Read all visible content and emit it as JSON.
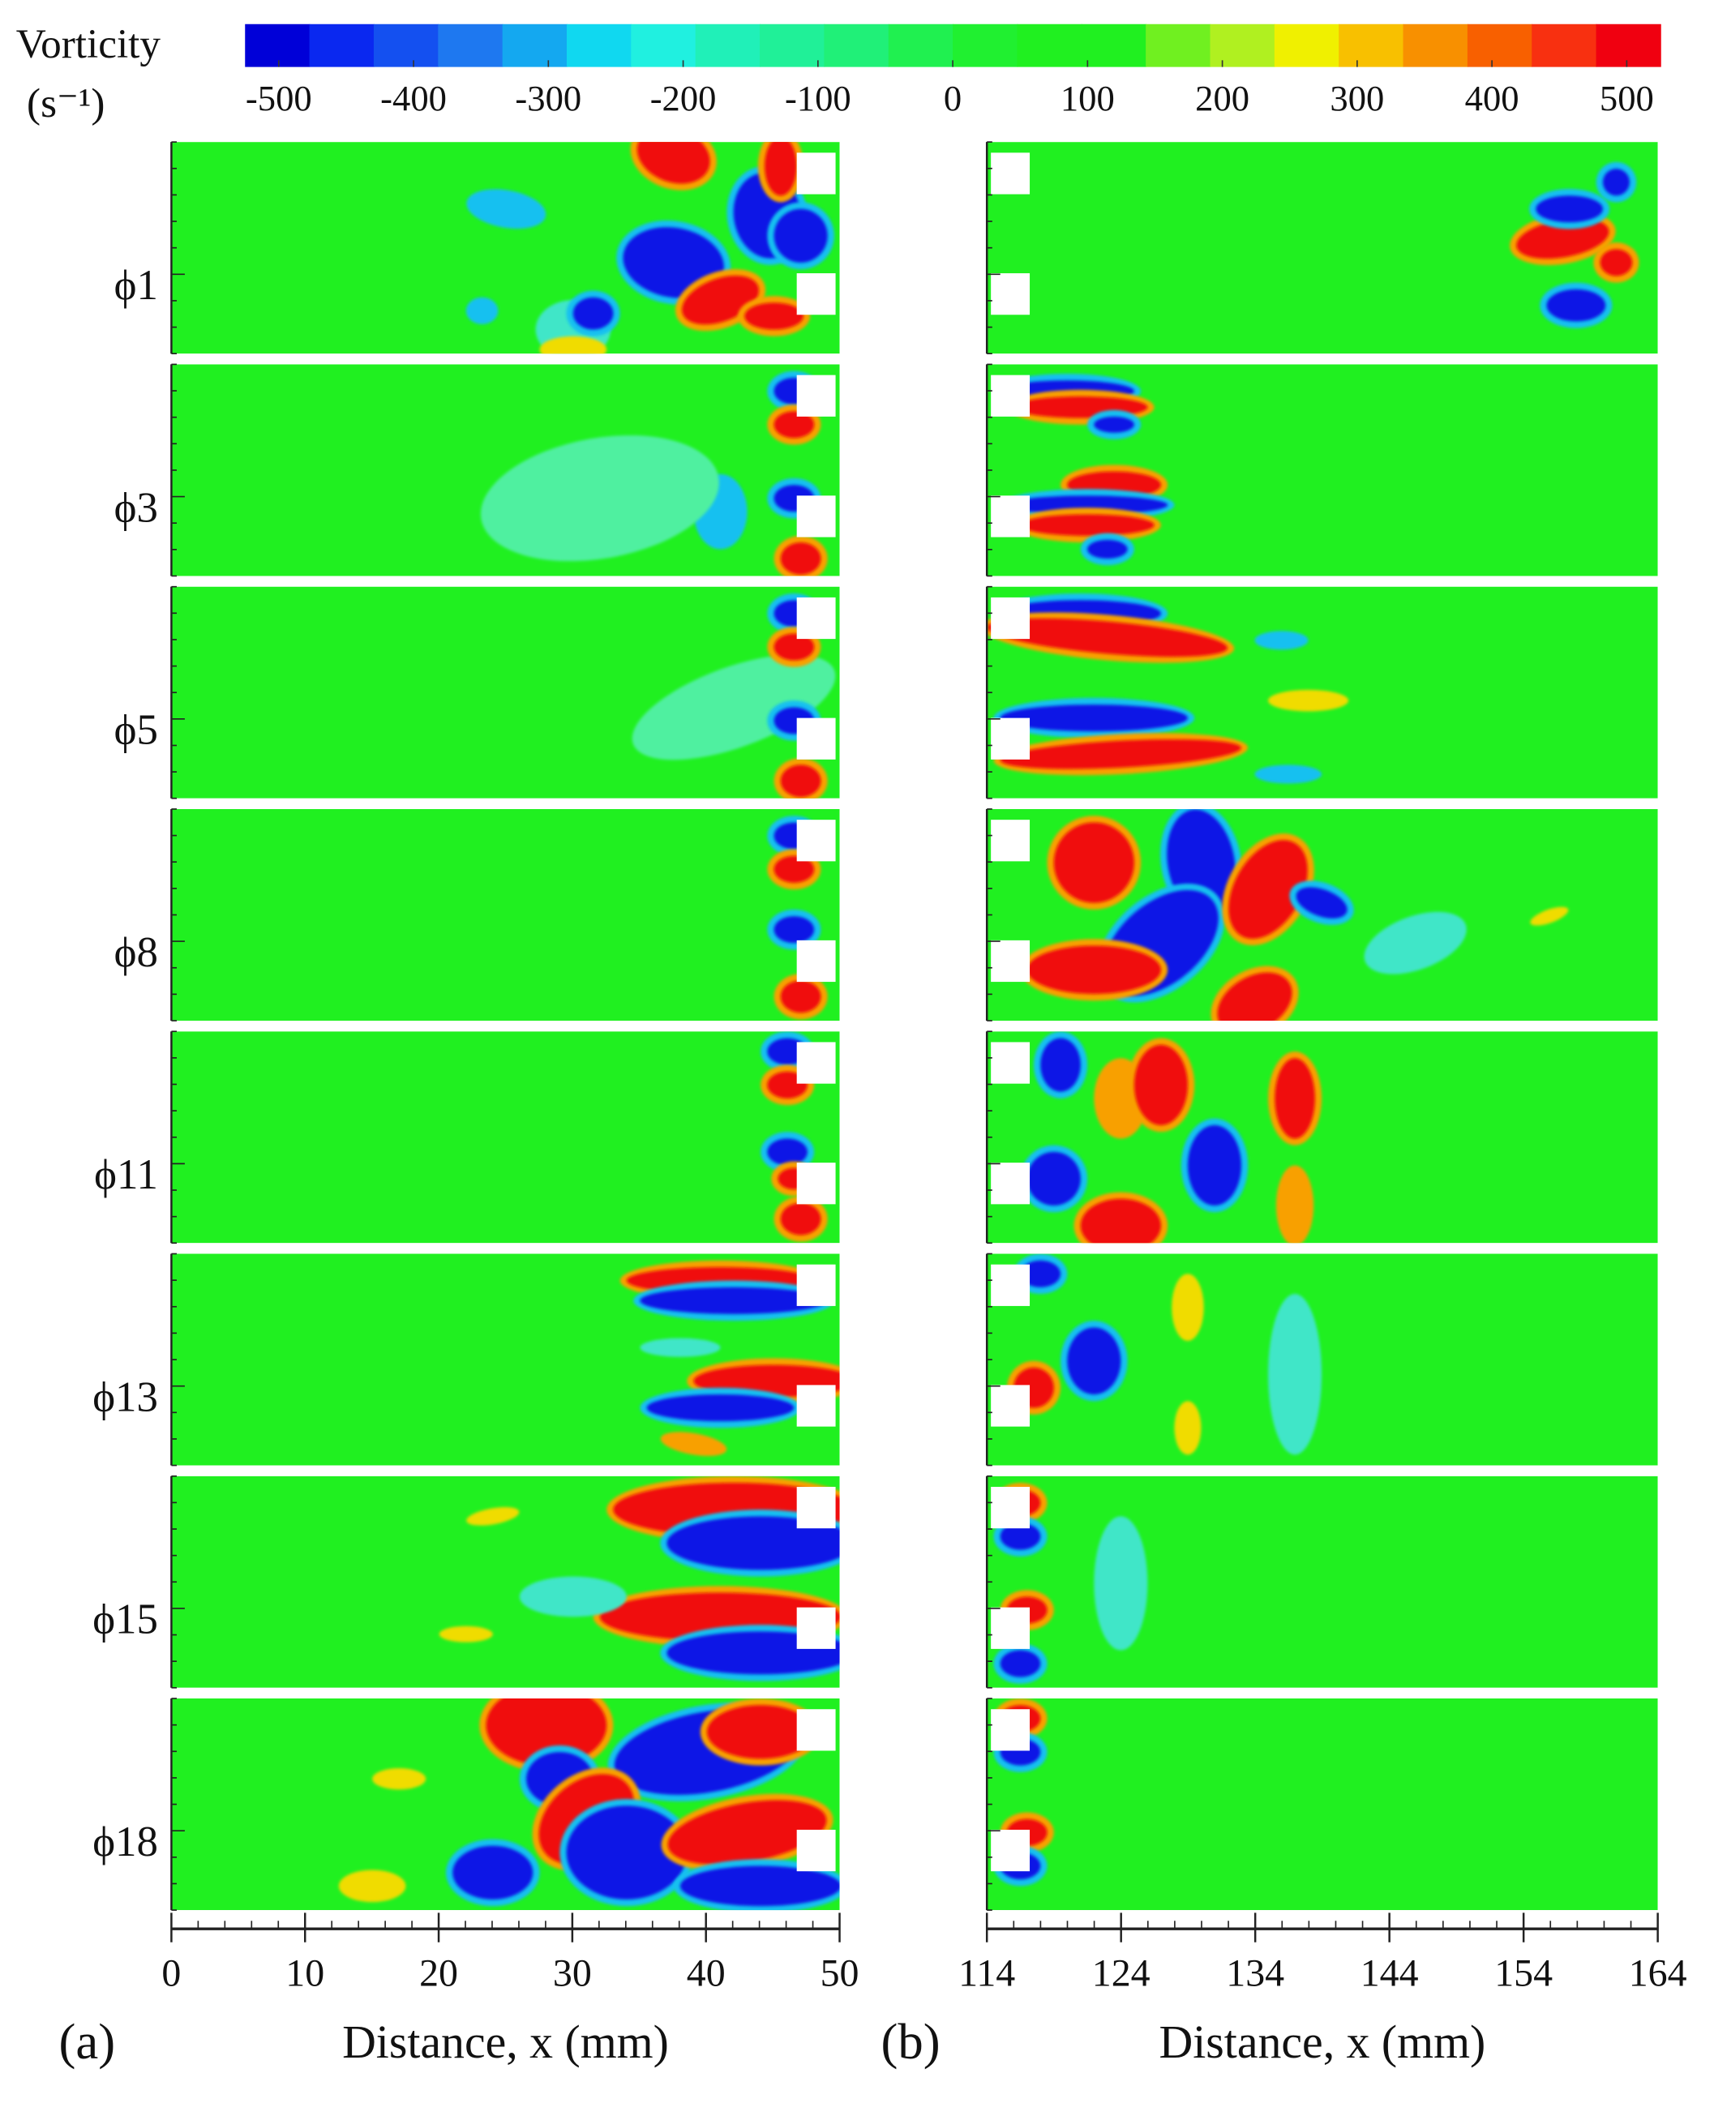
{
  "chart_data": {
    "type": "contour",
    "colorbar": {
      "title": "Vorticity",
      "unit": "(s⁻¹)",
      "lim": [
        -525,
        525
      ],
      "ticks": [
        -500,
        -400,
        -300,
        -200,
        -100,
        0,
        100,
        200,
        300,
        400,
        500
      ],
      "colors": [
        "#0000d8",
        "#0a28f0",
        "#1450f0",
        "#1e78f0",
        "#14a8f0",
        "#10d8f0",
        "#20f0e0",
        "#20f0b8",
        "#20f098",
        "#20f078",
        "#20f050",
        "#20f030",
        "#20f020",
        "#20f020",
        "#70f020",
        "#b0f020",
        "#f0f000",
        "#f8c000",
        "#f89000",
        "#f86000",
        "#f83010",
        "#f00010"
      ]
    },
    "rows": [
      "ϕ1",
      "ϕ3",
      "ϕ5",
      "ϕ8",
      "ϕ11",
      "ϕ13",
      "ϕ15",
      "ϕ18"
    ],
    "panels": [
      {
        "label": "(a)",
        "xlabel": "Distance, x (mm)",
        "xlim": [
          0,
          50
        ],
        "xticks": [
          0,
          10,
          20,
          30,
          40,
          50
        ]
      },
      {
        "label": "(b)",
        "xlabel": "Distance, x (mm)",
        "xlim": [
          114,
          164
        ],
        "xticks": [
          114,
          124,
          134,
          144,
          154,
          164
        ]
      }
    ]
  }
}
